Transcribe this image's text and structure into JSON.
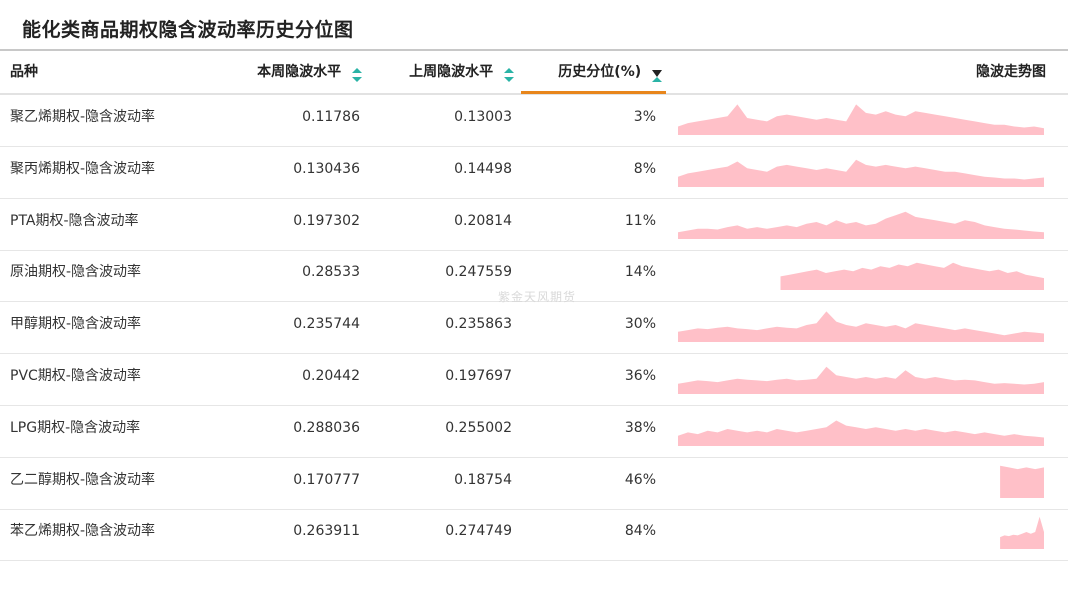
{
  "title": "能化类商品期权隐含波动率历史分位图",
  "watermark": "紫金天风期货",
  "header": {
    "name": "品种",
    "current": "本周隐波水平",
    "previous": "上周隐波水平",
    "percentile": "历史分位(%)",
    "trend": "隐波走势图"
  },
  "colors": {
    "sort_icon_up": "#2ab3a6",
    "sort_icon_down": "#2ab3a6",
    "sort_active": "#e8861c",
    "sparkline_fill": "#ffc0c8",
    "sparkline_baseline": "#b9c7e4"
  },
  "rows": [
    {
      "name": "聚乙烯期权-隐含波动率",
      "current": "0.11786",
      "previous": "0.13003",
      "percentile": "3%",
      "trend": {
        "start": 0.0,
        "values": [
          0.25,
          0.35,
          0.4,
          0.45,
          0.5,
          0.55,
          0.9,
          0.5,
          0.45,
          0.4,
          0.55,
          0.6,
          0.55,
          0.5,
          0.45,
          0.5,
          0.45,
          0.4,
          0.9,
          0.65,
          0.6,
          0.7,
          0.6,
          0.55,
          0.7,
          0.65,
          0.6,
          0.55,
          0.5,
          0.45,
          0.4,
          0.35,
          0.3,
          0.3,
          0.25,
          0.22,
          0.25,
          0.2
        ]
      }
    },
    {
      "name": "聚丙烯期权-隐含波动率",
      "current": "0.130436",
      "previous": "0.14498",
      "percentile": "8%",
      "trend": {
        "start": 0.0,
        "values": [
          0.3,
          0.4,
          0.45,
          0.5,
          0.55,
          0.6,
          0.75,
          0.55,
          0.5,
          0.45,
          0.6,
          0.65,
          0.6,
          0.55,
          0.5,
          0.55,
          0.5,
          0.45,
          0.8,
          0.65,
          0.6,
          0.65,
          0.6,
          0.55,
          0.6,
          0.55,
          0.5,
          0.45,
          0.45,
          0.4,
          0.35,
          0.3,
          0.28,
          0.25,
          0.25,
          0.22,
          0.25,
          0.28
        ]
      }
    },
    {
      "name": "PTA期权-隐含波动率",
      "current": "0.197302",
      "previous": "0.20814",
      "percentile": "11%",
      "trend": {
        "start": 0.0,
        "values": [
          0.2,
          0.25,
          0.3,
          0.3,
          0.28,
          0.35,
          0.4,
          0.3,
          0.35,
          0.3,
          0.35,
          0.4,
          0.35,
          0.45,
          0.5,
          0.4,
          0.55,
          0.45,
          0.5,
          0.4,
          0.45,
          0.6,
          0.7,
          0.8,
          0.65,
          0.6,
          0.55,
          0.5,
          0.45,
          0.55,
          0.5,
          0.4,
          0.35,
          0.3,
          0.28,
          0.25,
          0.22,
          0.2
        ]
      }
    },
    {
      "name": "原油期权-隐含波动率",
      "current": "0.28533",
      "previous": "0.247559",
      "percentile": "14%",
      "trend": {
        "start": 0.28,
        "values": [
          0.4,
          0.45,
          0.5,
          0.55,
          0.6,
          0.5,
          0.55,
          0.6,
          0.55,
          0.65,
          0.6,
          0.7,
          0.65,
          0.75,
          0.7,
          0.8,
          0.75,
          0.7,
          0.65,
          0.8,
          0.7,
          0.65,
          0.6,
          0.55,
          0.6,
          0.5,
          0.55,
          0.45,
          0.4,
          0.35
        ]
      }
    },
    {
      "name": "甲醇期权-隐含波动率",
      "current": "0.235744",
      "previous": "0.235863",
      "percentile": "30%",
      "trend": {
        "start": 0.0,
        "values": [
          0.3,
          0.35,
          0.4,
          0.38,
          0.42,
          0.45,
          0.4,
          0.38,
          0.35,
          0.4,
          0.45,
          0.42,
          0.4,
          0.5,
          0.55,
          0.9,
          0.6,
          0.5,
          0.45,
          0.55,
          0.5,
          0.45,
          0.5,
          0.4,
          0.55,
          0.5,
          0.45,
          0.4,
          0.35,
          0.4,
          0.35,
          0.3,
          0.25,
          0.2,
          0.25,
          0.3,
          0.28,
          0.25
        ]
      }
    },
    {
      "name": "PVC期权-隐含波动率",
      "current": "0.20442",
      "previous": "0.197697",
      "percentile": "36%",
      "trend": {
        "start": 0.0,
        "values": [
          0.3,
          0.35,
          0.4,
          0.38,
          0.35,
          0.4,
          0.45,
          0.42,
          0.4,
          0.38,
          0.42,
          0.45,
          0.4,
          0.42,
          0.45,
          0.8,
          0.55,
          0.5,
          0.45,
          0.5,
          0.45,
          0.5,
          0.45,
          0.7,
          0.5,
          0.45,
          0.5,
          0.45,
          0.4,
          0.42,
          0.4,
          0.35,
          0.3,
          0.32,
          0.3,
          0.28,
          0.3,
          0.35
        ]
      }
    },
    {
      "name": "LPG期权-隐含波动率",
      "current": "0.288036",
      "previous": "0.255002",
      "percentile": "38%",
      "trend": {
        "start": 0.0,
        "values": [
          0.3,
          0.4,
          0.35,
          0.45,
          0.4,
          0.5,
          0.45,
          0.4,
          0.45,
          0.4,
          0.5,
          0.45,
          0.4,
          0.45,
          0.5,
          0.55,
          0.75,
          0.6,
          0.55,
          0.5,
          0.55,
          0.5,
          0.45,
          0.5,
          0.45,
          0.5,
          0.45,
          0.4,
          0.45,
          0.4,
          0.35,
          0.4,
          0.35,
          0.3,
          0.35,
          0.3,
          0.28,
          0.25
        ]
      }
    },
    {
      "name": "乙二醇期权-隐含波动率",
      "current": "0.170777",
      "previous": "0.18754",
      "percentile": "46%",
      "trend": {
        "start": 0.88,
        "values": [
          0.95,
          0.9,
          0.85,
          0.9,
          0.85,
          0.9
        ]
      }
    },
    {
      "name": "苯乙烯期权-隐含波动率",
      "current": "0.263911",
      "previous": "0.274749",
      "percentile": "84%",
      "trend": {
        "start": 0.88,
        "values": [
          0.35,
          0.4,
          0.38,
          0.42,
          0.4,
          0.45,
          0.5,
          0.45,
          0.5,
          0.95,
          0.5
        ]
      }
    }
  ]
}
